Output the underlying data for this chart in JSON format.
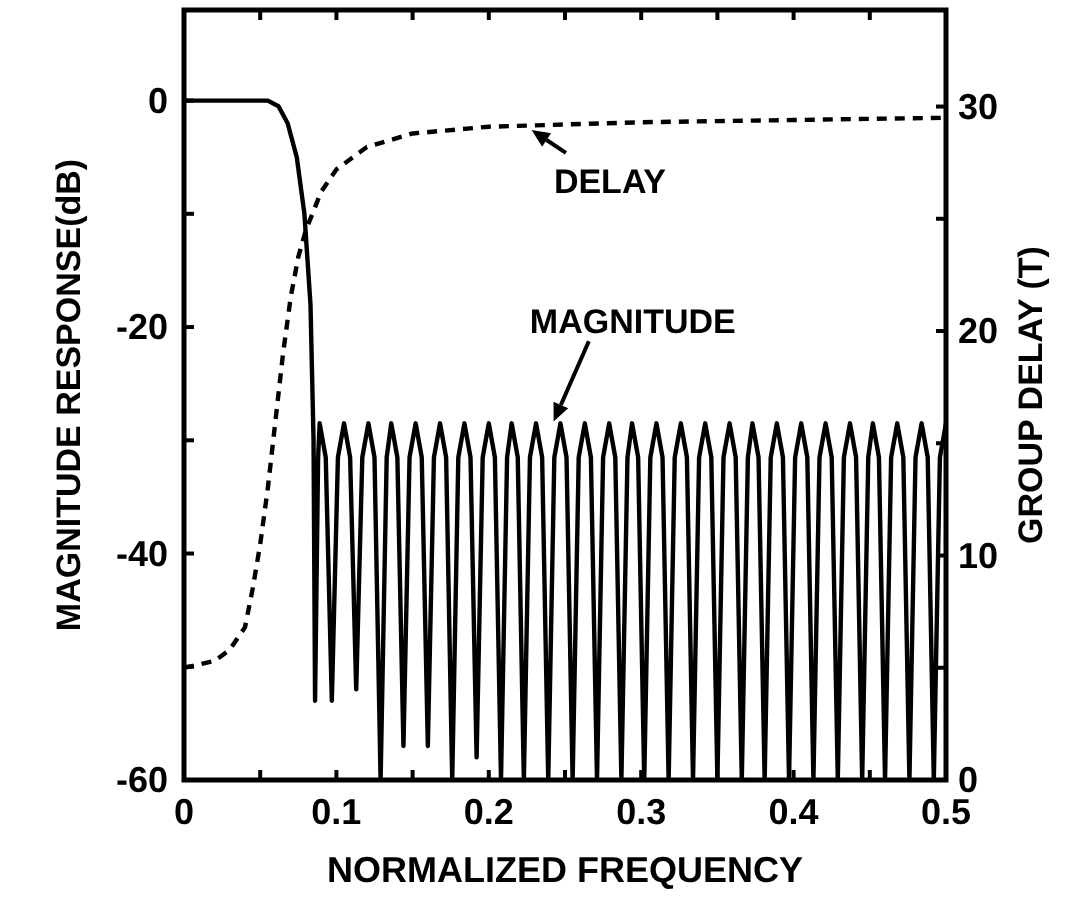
{
  "chart_data": {
    "type": "line",
    "xlabel": "NORMALIZED FREQUENCY",
    "ylabel": "MAGNITUDE RESPONSE(dB)",
    "y2label": "GROUP DELAY (T)",
    "xlim": [
      0,
      0.5
    ],
    "xticks": [
      0,
      {
        "value": 0.05,
        "label": null
      },
      0.1,
      {
        "value": 0.15,
        "label": null
      },
      0.2,
      {
        "value": 0.25,
        "label": null
      },
      0.3,
      {
        "value": 0.35,
        "label": null
      },
      0.4,
      {
        "value": 0.45,
        "label": null
      },
      0.5
    ],
    "ylim": [
      -60,
      8
    ],
    "yticks": [
      -60,
      {
        "value": -50,
        "label": null
      },
      -40,
      {
        "value": -30,
        "label": null
      },
      -20,
      {
        "value": -10,
        "label": null
      },
      0
    ],
    "y2lim": [
      0,
      34.3
    ],
    "y2ticks": [
      0,
      {
        "value": 5,
        "label": null
      },
      10,
      {
        "value": 15,
        "label": null
      },
      20,
      {
        "value": 25,
        "label": null
      },
      30
    ],
    "grid": false,
    "marker": "none",
    "series": [
      {
        "color": "#000000",
        "line_style": "solid",
        "x": [
          0,
          0.055,
          0.062,
          0.068,
          0.074,
          0.079,
          0.083,
          0.085,
          0.086,
          0.088,
          0.089,
          0.093,
          0.097,
          0.101,
          0.105,
          0.109,
          0.113,
          0.117,
          0.121,
          0.125,
          0.129,
          0.133,
          0.136,
          0.14,
          0.144,
          0.148,
          0.152,
          0.156,
          0.16,
          0.164,
          0.168,
          0.172,
          0.176,
          0.18,
          0.184,
          0.188,
          0.192,
          0.196,
          0.2,
          0.204,
          0.208,
          0.212,
          0.215,
          0.219,
          0.223,
          0.227,
          0.231,
          0.235,
          0.239,
          0.243,
          0.247,
          0.251,
          0.255,
          0.259,
          0.263,
          0.267,
          0.271,
          0.275,
          0.279,
          0.283,
          0.287,
          0.291,
          0.294,
          0.298,
          0.302,
          0.306,
          0.31,
          0.314,
          0.318,
          0.322,
          0.326,
          0.33,
          0.334,
          0.338,
          0.342,
          0.346,
          0.35,
          0.354,
          0.358,
          0.362,
          0.366,
          0.37,
          0.373,
          0.377,
          0.381,
          0.385,
          0.389,
          0.393,
          0.397,
          0.401,
          0.405,
          0.409,
          0.413,
          0.417,
          0.421,
          0.425,
          0.429,
          0.433,
          0.437,
          0.441,
          0.445,
          0.449,
          0.452,
          0.456,
          0.46,
          0.464,
          0.468,
          0.472,
          0.476,
          0.48,
          0.484,
          0.488,
          0.492,
          0.496,
          0.5
        ],
        "values": [
          0,
          0,
          -0.5,
          -2,
          -5,
          -10,
          -18,
          -30,
          -53,
          -31.5,
          -28.5,
          -31.5,
          -53,
          -31.5,
          -28.5,
          -31.5,
          -52,
          -31.5,
          -28.5,
          -31.5,
          -60,
          -31.5,
          -28.5,
          -31.5,
          -57,
          -31.5,
          -28.5,
          -31.5,
          -57,
          -31.5,
          -28.5,
          -31.5,
          -60,
          -31.5,
          -28.5,
          -31.5,
          -58,
          -31.5,
          -28.5,
          -31.5,
          -60,
          -31.5,
          -28.5,
          -31.5,
          -60,
          -31.5,
          -28.5,
          -31.5,
          -60,
          -31.5,
          -28.5,
          -31.5,
          -60,
          -31.5,
          -28.5,
          -31.5,
          -60,
          -31.5,
          -28.5,
          -31.5,
          -60,
          -31.5,
          -28.5,
          -31.5,
          -60,
          -31.5,
          -28.5,
          -31.5,
          -60,
          -31.5,
          -28.5,
          -31.5,
          -60,
          -31.5,
          -28.5,
          -31.5,
          -60,
          -31.5,
          -28.5,
          -31.5,
          -60,
          -31.5,
          -28.5,
          -31.5,
          -60,
          -31.5,
          -28.5,
          -31.5,
          -60,
          -31.5,
          -28.5,
          -31.5,
          -60,
          -31.5,
          -28.5,
          -31.5,
          -60,
          -31.5,
          -28.5,
          -31.5,
          -60,
          -31.5,
          -28.5,
          -31.5,
          -60,
          -31.5,
          -28.5,
          -31.5,
          -60,
          -31.5,
          -28.5,
          -31.5,
          -60,
          -31.5,
          -28.5
        ]
      },
      {
        "color": "#000000",
        "line_style": "dashed",
        "axis": "y2",
        "x": [
          0,
          0.02,
          0.03,
          0.04,
          0.045,
          0.05,
          0.055,
          0.06,
          0.065,
          0.07,
          0.075,
          0.08,
          0.09,
          0.1,
          0.12,
          0.15,
          0.2,
          0.3,
          0.4,
          0.5
        ],
        "values": [
          5,
          5.3,
          5.8,
          6.8,
          8.5,
          10.5,
          13,
          16,
          19,
          21.5,
          23.3,
          24.5,
          26.2,
          27.2,
          28.2,
          28.8,
          29.1,
          29.3,
          29.4,
          29.5
        ]
      }
    ],
    "annotations": [
      {
        "text": "DELAY",
        "x": 0.227,
        "y": -2.5
      },
      {
        "text": "MAGNITUDE",
        "x": 0.242,
        "y": -28.5
      }
    ]
  }
}
